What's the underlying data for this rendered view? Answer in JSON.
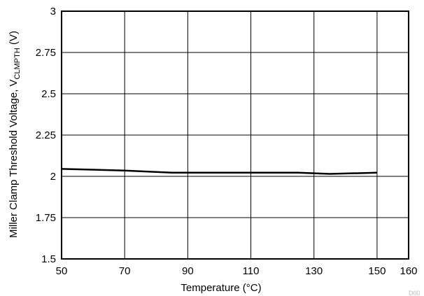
{
  "chart_data": {
    "type": "line",
    "xlabel": "Temperature (°C)",
    "ylabel": {
      "prefix": "Miller Clamp Threshold Voltage, V",
      "subscript": "CLMPTH",
      "suffix": " (V)"
    },
    "xlim": [
      50,
      160
    ],
    "ylim": [
      1.5,
      3
    ],
    "x_ticks": [
      50,
      70,
      90,
      110,
      130,
      150,
      160
    ],
    "y_ticks": [
      "1.5",
      "1.75",
      "2",
      "2.25",
      "2.5",
      "2.75",
      "3"
    ],
    "grid": true,
    "series": [
      {
        "x": [
          50,
          60,
          70,
          85,
          100,
          125,
          135,
          150
        ],
        "y": [
          2.045,
          2.04,
          2.035,
          2.022,
          2.022,
          2.022,
          2.015,
          2.022
        ]
      }
    ],
    "line_color": "#000000"
  },
  "watermark": "D00"
}
